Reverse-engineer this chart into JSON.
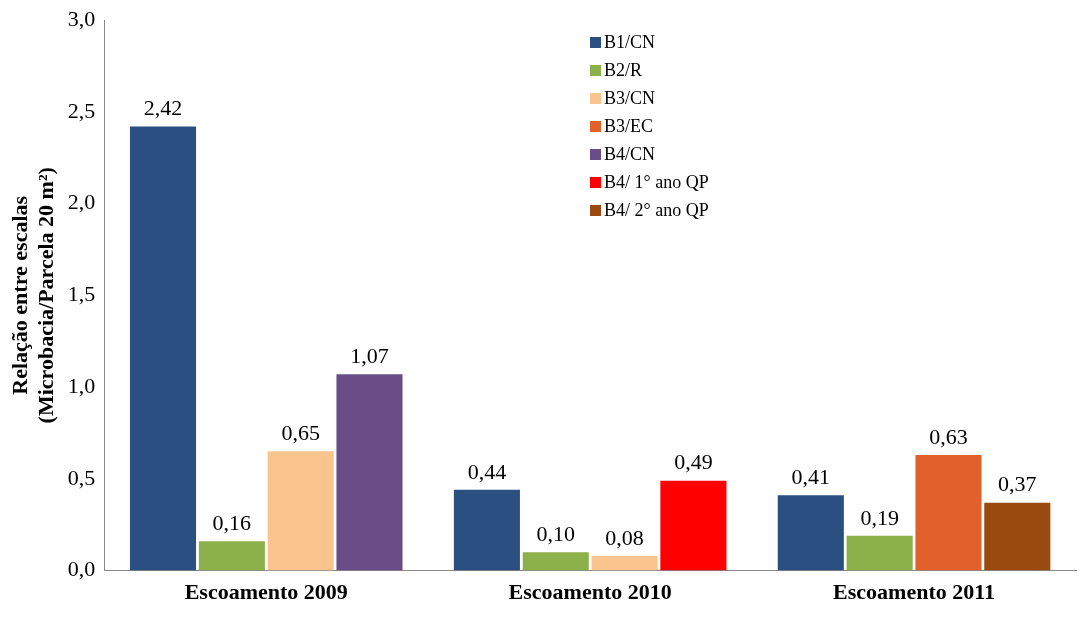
{
  "chart_data": {
    "type": "bar",
    "ylabel": "Relação entre escalas\n(Microbacia/Parcela 20 m²)",
    "categories": [
      "Escoamento 2009",
      "Escoamento 2010",
      "Escoamento 2011"
    ],
    "series": [
      {
        "name": "B1/CN",
        "color": "#2b4f81",
        "values": [
          2.42,
          0.44,
          0.41
        ],
        "value_labels": [
          "2,42",
          "0,44",
          "0,41"
        ]
      },
      {
        "name": "B2/R",
        "color": "#8cb04a",
        "values": [
          0.16,
          0.1,
          0.19
        ],
        "value_labels": [
          "0,16",
          "0,10",
          "0,19"
        ]
      },
      {
        "name": "B3/CN",
        "color": "#f9c48e",
        "values": [
          0.65,
          0.08,
          null
        ],
        "value_labels": [
          "0,65",
          "0,08",
          null
        ]
      },
      {
        "name": "B3/EC",
        "color": "#e2602c",
        "values": [
          null,
          null,
          0.63
        ],
        "value_labels": [
          null,
          null,
          "0,63"
        ]
      },
      {
        "name": "B4/CN",
        "color": "#6a4c87",
        "values": [
          1.07,
          null,
          null
        ],
        "value_labels": [
          "1,07",
          null,
          null
        ]
      },
      {
        "name": "B4/ 1° ano QP",
        "color": "#ff0000",
        "values": [
          null,
          0.49,
          null
        ],
        "value_labels": [
          null,
          "0,49",
          null
        ]
      },
      {
        "name": "B4/ 2° ano QP",
        "color": "#9a4a0e",
        "values": [
          null,
          null,
          0.37
        ],
        "value_labels": [
          null,
          null,
          "0,37"
        ]
      }
    ],
    "ylim": [
      0,
      3
    ],
    "yticks": [
      {
        "value": 0,
        "label": "0,0"
      },
      {
        "value": 0.5,
        "label": "0,5"
      },
      {
        "value": 1,
        "label": "1,0"
      },
      {
        "value": 1.5,
        "label": "1,5"
      },
      {
        "value": 2,
        "label": "2,0"
      },
      {
        "value": 2.5,
        "label": "2,5"
      },
      {
        "value": 3,
        "label": "3,0"
      }
    ],
    "grid": false,
    "legend": "top"
  }
}
